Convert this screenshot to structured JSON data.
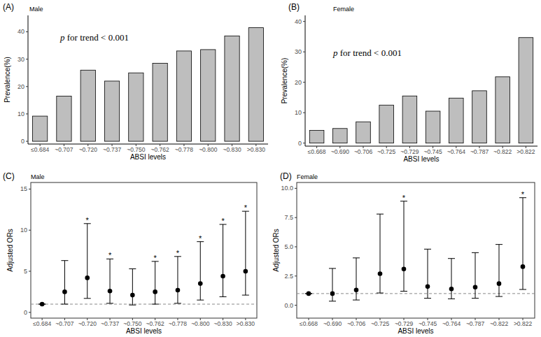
{
  "chart_data": [
    {
      "type": "bar",
      "panel_label": "(A)",
      "title": "Male",
      "annotation": "p for trend < 0.001",
      "x_label": "ABSI levels",
      "y_label": "Prevalence(%)",
      "categories": [
        "≤0.684",
        "~0.707",
        "~0.720",
        "~0.737",
        "~0.750",
        "~0.762",
        "~0.778",
        "~0.800",
        "~0.830",
        ">0.830"
      ],
      "values": [
        9.2,
        16.5,
        26,
        22,
        25,
        28.5,
        33,
        33.5,
        38.5,
        41.5
      ],
      "color": "#bebebe",
      "ylim": [
        -1,
        46
      ],
      "yticks": [
        0,
        10,
        20,
        30,
        40
      ],
      "grid": false
    },
    {
      "type": "bar",
      "panel_label": "(B)",
      "title": "Female",
      "annotation": "p for trend < 0.001",
      "x_label": "ABSI levels",
      "y_label": "Prevalence(%)",
      "categories": [
        "≤0.668",
        "~0.690",
        "~0.706",
        "~0.725",
        "~0.729",
        "~0.745",
        "~0.764",
        "~0.787",
        "~0.822",
        ">0.822"
      ],
      "values": [
        4.2,
        4.8,
        7,
        12.5,
        15.5,
        10.5,
        14.8,
        17.2,
        21.8,
        34.7
      ],
      "color": "#bebebe",
      "ylim": [
        -1,
        42
      ],
      "yticks": [
        0,
        10,
        20,
        30,
        40
      ],
      "grid": false
    },
    {
      "type": "point",
      "panel_label": "(C)",
      "title": "Male",
      "x_label": "ABSI levels",
      "y_label": "Adjusted ORs",
      "categories": [
        "≤0.684",
        "~0.707",
        "~0.720",
        "~0.737",
        "~0.750",
        "~0.762",
        "~0.778",
        "~0.800",
        "~0.830",
        ">0.830"
      ],
      "values": [
        1,
        2.5,
        4.2,
        2.6,
        2.1,
        2.5,
        2.7,
        3.5,
        4.4,
        5.0
      ],
      "lower": [
        1,
        1.0,
        1.7,
        1.1,
        0.9,
        1.0,
        1.1,
        1.5,
        1.9,
        2.1
      ],
      "upper": [
        1,
        6.3,
        10.8,
        6.5,
        5.3,
        6.2,
        6.8,
        8.6,
        10.7,
        12.3
      ],
      "stars": [
        null,
        null,
        "*",
        "*",
        null,
        "*",
        "*",
        "*",
        "*",
        "*"
      ],
      "hline": 1,
      "color": "#000000",
      "ylim": [
        -0.7,
        15.8
      ],
      "yticks": [
        0,
        5,
        10,
        15
      ],
      "grid": false
    },
    {
      "type": "point",
      "panel_label": "(D)",
      "title": "Female",
      "x_label": "ABSI levels",
      "y_label": "Adjusted ORs",
      "categories": [
        "≤0.668",
        "~0.690",
        "~0.706",
        "~0.725",
        "~0.729",
        "~0.745",
        "~0.764",
        "~0.787",
        "~0.822",
        ">0.822"
      ],
      "values": [
        1,
        1.0,
        1.3,
        2.7,
        3.1,
        1.6,
        1.4,
        1.55,
        1.85,
        3.3
      ],
      "lower": [
        1,
        0.35,
        0.45,
        1.05,
        1.2,
        0.6,
        0.55,
        0.6,
        0.75,
        1.35
      ],
      "upper": [
        1,
        3.15,
        4.05,
        7.8,
        8.9,
        4.8,
        4.0,
        4.5,
        5.2,
        9.2
      ],
      "stars": [
        null,
        null,
        null,
        null,
        "*",
        null,
        null,
        null,
        null,
        "*"
      ],
      "hline": 1,
      "color": "#000000",
      "ylim": [
        -1.1,
        10.5
      ],
      "yticks": [
        {
          "value": 0,
          "label": "0.0"
        },
        {
          "value": 2.5,
          "label": "2.5"
        },
        {
          "value": 5,
          "label": "5.0"
        },
        {
          "value": 7.5,
          "label": "7.5"
        },
        {
          "value": 10,
          "label": "10.0"
        }
      ],
      "grid": false
    }
  ]
}
